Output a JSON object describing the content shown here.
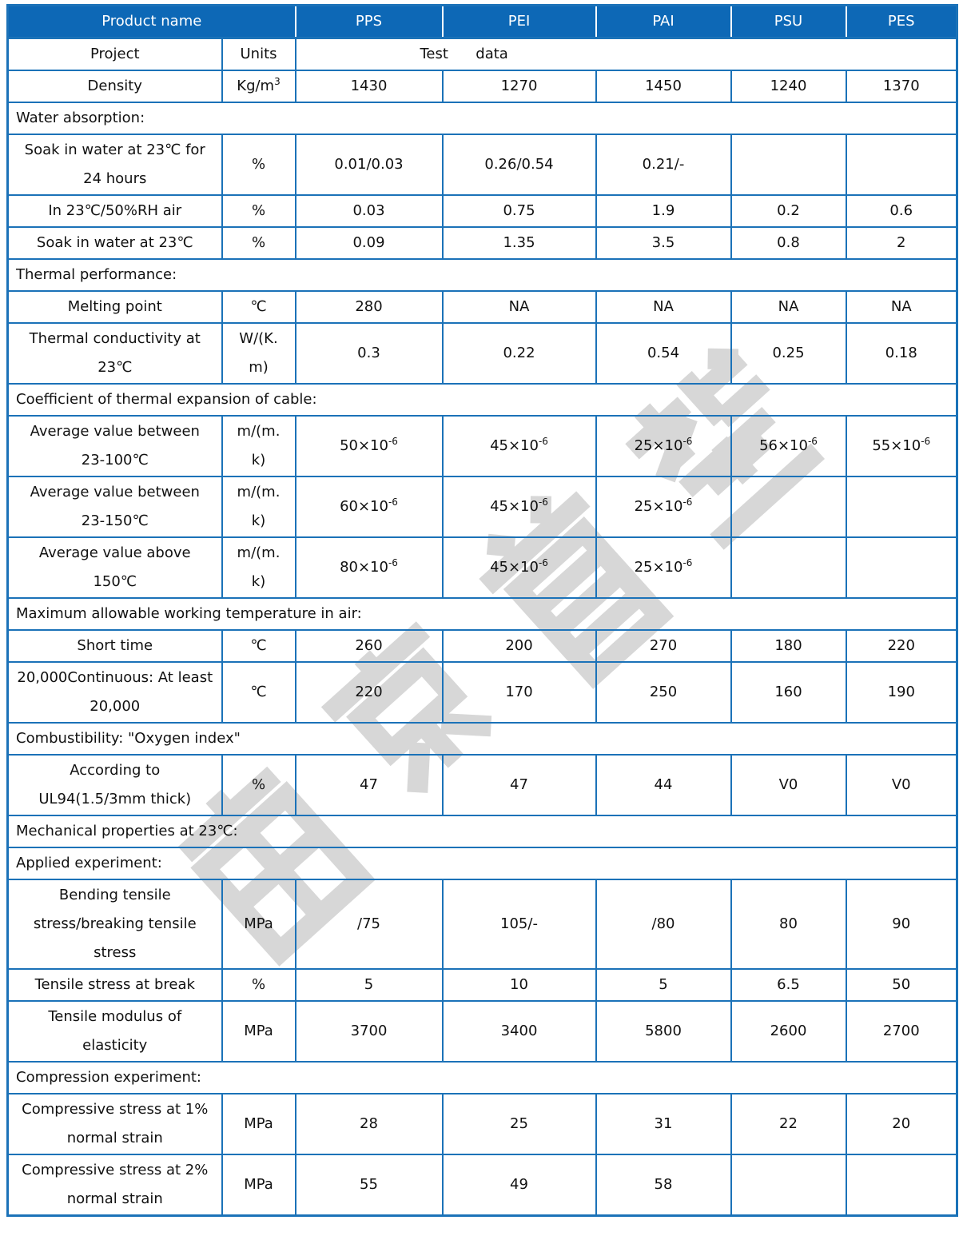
{
  "watermark": {
    "text": "南京首塑",
    "color": "#d7d7d7"
  },
  "theme": {
    "header_bg": "#0D68B6",
    "border_color": "#1B72B8",
    "header_text_color": "#ffffff"
  },
  "table": {
    "header": {
      "product_label": "Product name",
      "products": [
        "PPS",
        "PEI",
        "PAI",
        "PSU",
        "PES"
      ]
    },
    "subheader": {
      "label": "Project",
      "unit": "Units",
      "merged_value": "Test      data"
    },
    "rows": [
      {
        "label": "Density",
        "unit": "Kg/m^3",
        "values": [
          "1430",
          "1270",
          "1450",
          "1240",
          "1370"
        ]
      },
      {
        "section": "Water absorption:"
      },
      {
        "label": "Soak in water at 23℃ for\n24 hours",
        "unit": "%",
        "values": [
          "0.01/0.03",
          "0.26/0.54",
          "0.21/-",
          "",
          ""
        ]
      },
      {
        "label": "In 23℃/50%RH air",
        "unit": "%",
        "values": [
          "0.03",
          "0.75",
          "1.9",
          "0.2",
          "0.6"
        ]
      },
      {
        "label": "Soak in water at 23℃",
        "unit": "%",
        "values": [
          "0.09",
          "1.35",
          "3.5",
          "0.8",
          "2"
        ]
      },
      {
        "section": "Thermal performance:"
      },
      {
        "label": "Melting point",
        "unit": "℃",
        "values": [
          "280",
          "NA",
          "NA",
          "NA",
          "NA"
        ]
      },
      {
        "label": "Thermal conductivity at\n23℃",
        "unit": "W/(K.\nm)",
        "values": [
          "0.3",
          "0.22",
          "0.54",
          "0.25",
          "0.18"
        ]
      },
      {
        "section": "Coefficient of thermal expansion of cable:"
      },
      {
        "label": "Average value between\n23-100℃",
        "unit": "m/(m.\nk)",
        "values": [
          "50×10^-6",
          "45×10^-6",
          "25×10^-6",
          "56×10^-6",
          "55×10^-6"
        ]
      },
      {
        "label": "Average value between\n23-150℃",
        "unit": "m/(m.\nk)",
        "values": [
          "60×10^-6",
          "45×10^-6",
          "25×10^-6",
          "",
          ""
        ]
      },
      {
        "label": "Average value above\n150℃",
        "unit": "m/(m.\nk)",
        "values": [
          "80×10^-6",
          "45×10^-6",
          "25×10^-6",
          "",
          ""
        ]
      },
      {
        "section": "Maximum allowable working temperature in air:"
      },
      {
        "label": "Short time",
        "unit": "℃",
        "values": [
          "260",
          "200",
          "270",
          "180",
          "220"
        ]
      },
      {
        "label": "20,000Continuous: At least\n20,000",
        "unit": "℃",
        "values": [
          "220",
          "170",
          "250",
          "160",
          "190"
        ]
      },
      {
        "section": "Combustibility: \"Oxygen index\""
      },
      {
        "label": "According to\nUL94(1.5/3mm thick)",
        "unit": "%",
        "values": [
          "47",
          "47",
          "44",
          "V0",
          "V0"
        ]
      },
      {
        "section": "Mechanical properties at 23℃:"
      },
      {
        "section": "Applied experiment:"
      },
      {
        "label": "Bending tensile\nstress/breaking tensile\nstress",
        "unit": "MPa",
        "values": [
          "/75",
          "105/-",
          "/80",
          "80",
          "90"
        ]
      },
      {
        "label": "Tensile stress at break",
        "unit": "%",
        "values": [
          "5",
          "10",
          "5",
          "6.5",
          "50"
        ]
      },
      {
        "label": "Tensile modulus of\nelasticity",
        "unit": "MPa",
        "values": [
          "3700",
          "3400",
          "5800",
          "2600",
          "2700"
        ]
      },
      {
        "section": "Compression experiment:"
      },
      {
        "label": "Compressive stress at 1%\nnormal strain",
        "unit": "MPa",
        "values": [
          "28",
          "25",
          "31",
          "22",
          "20"
        ]
      },
      {
        "label": "Compressive stress at 2%\nnormal strain",
        "unit": "MPa",
        "values": [
          "55",
          "49",
          "58",
          "",
          ""
        ]
      }
    ]
  }
}
